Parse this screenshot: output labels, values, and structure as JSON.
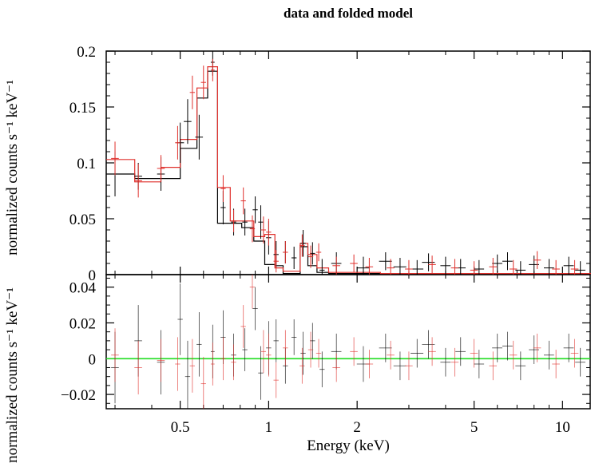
{
  "chart_data": [
    {
      "panel": "top",
      "type": "scatter",
      "title": "data and folded model",
      "ylabel": "normalized counts s⁻¹ keV⁻¹",
      "xscale": "log",
      "xlim": [
        0.28,
        12.5
      ],
      "ylim": [
        0,
        0.2
      ],
      "yticks": [
        0,
        0.05,
        0.1,
        0.15,
        0.2
      ],
      "ytick_labels": [
        "0",
        "0.05",
        "0.1",
        "0.15",
        "0.2"
      ],
      "series": [
        {
          "color": "#000000",
          "data": [
            [
              0.3,
              0.09,
              0.03,
              0.02
            ],
            [
              0.36,
              0.088,
              0.03,
              0.012
            ],
            [
              0.43,
              0.09,
              0.03,
              0.015
            ],
            [
              0.5,
              0.118,
              0.03,
              0.018
            ],
            [
              0.53,
              0.137,
              0.03,
              0.02
            ],
            [
              0.58,
              0.123,
              0.03,
              0.02
            ],
            [
              0.645,
              0.19,
              0.015,
              0.012
            ],
            [
              0.7,
              0.06,
              0.02,
              0.015
            ],
            [
              0.76,
              0.047,
              0.02,
              0.012
            ],
            [
              0.83,
              0.047,
              0.02,
              0.012
            ],
            [
              0.9,
              0.058,
              0.02,
              0.012
            ],
            [
              0.94,
              0.047,
              0.02,
              0.015
            ],
            [
              1.0,
              0.033,
              0.02,
              0.015
            ],
            [
              1.06,
              0.018,
              0.02,
              0.012
            ],
            [
              1.14,
              0.02,
              0.02,
              0.01
            ],
            [
              1.22,
              0.015,
              0.02,
              0.01
            ],
            [
              1.31,
              0.028,
              0.02,
              0.012
            ],
            [
              1.41,
              0.019,
              0.02,
              0.01
            ],
            [
              1.52,
              0.004,
              0.02,
              0.01
            ],
            [
              1.7,
              0.01,
              0.04,
              0.01
            ],
            [
              2.1,
              0.006,
              0.05,
              0.01
            ],
            [
              2.5,
              0.012,
              0.05,
              0.008
            ],
            [
              2.8,
              0.007,
              0.05,
              0.008
            ],
            [
              3.2,
              0.005,
              0.05,
              0.008
            ],
            [
              3.5,
              0.011,
              0.05,
              0.008
            ],
            [
              4.0,
              0.008,
              0.04,
              0.008
            ],
            [
              4.5,
              0.006,
              0.04,
              0.008
            ],
            [
              5.2,
              0.005,
              0.04,
              0.008
            ],
            [
              6.0,
              0.01,
              0.04,
              0.008
            ],
            [
              6.5,
              0.012,
              0.04,
              0.008
            ],
            [
              7.2,
              0.004,
              0.04,
              0.008
            ],
            [
              8.0,
              0.009,
              0.04,
              0.008
            ],
            [
              9.0,
              0.006,
              0.04,
              0.008
            ],
            [
              10.5,
              0.008,
              0.04,
              0.008
            ],
            [
              11.5,
              0.004,
              0.04,
              0.008
            ]
          ]
        },
        {
          "color": "#e0302c",
          "data": [
            [
              0.3,
              0.104,
              0.03,
              0.015
            ],
            [
              0.36,
              0.084,
              0.03,
              0.015
            ],
            [
              0.43,
              0.095,
              0.03,
              0.012
            ],
            [
              0.49,
              0.118,
              0.02,
              0.015
            ],
            [
              0.55,
              0.163,
              0.02,
              0.015
            ],
            [
              0.6,
              0.172,
              0.02,
              0.015
            ],
            [
              0.645,
              0.183,
              0.015,
              0.01
            ],
            [
              0.7,
              0.077,
              0.02,
              0.012
            ],
            [
              0.76,
              0.048,
              0.02,
              0.01
            ],
            [
              0.82,
              0.066,
              0.02,
              0.012
            ],
            [
              0.88,
              0.041,
              0.02,
              0.012
            ],
            [
              0.96,
              0.04,
              0.02,
              0.012
            ],
            [
              1.0,
              0.038,
              0.02,
              0.012
            ],
            [
              1.06,
              0.012,
              0.02,
              0.01
            ],
            [
              1.14,
              0.02,
              0.02,
              0.01
            ],
            [
              1.3,
              0.026,
              0.02,
              0.01
            ],
            [
              1.39,
              0.016,
              0.02,
              0.01
            ],
            [
              1.48,
              0.02,
              0.02,
              0.008
            ],
            [
              1.7,
              0.008,
              0.03,
              0.008
            ],
            [
              1.95,
              0.01,
              0.03,
              0.008
            ],
            [
              2.2,
              0.007,
              0.03,
              0.008
            ],
            [
              2.6,
              0.006,
              0.03,
              0.008
            ],
            [
              3.0,
              0.005,
              0.03,
              0.008
            ],
            [
              3.6,
              0.009,
              0.03,
              0.008
            ],
            [
              4.3,
              0.006,
              0.03,
              0.008
            ],
            [
              5.0,
              0.004,
              0.03,
              0.008
            ],
            [
              5.8,
              0.007,
              0.03,
              0.008
            ],
            [
              6.8,
              0.005,
              0.03,
              0.008
            ],
            [
              8.2,
              0.013,
              0.03,
              0.008
            ],
            [
              9.5,
              0.005,
              0.03,
              0.008
            ],
            [
              11.0,
              0.005,
              0.03,
              0.008
            ]
          ]
        }
      ],
      "models": [
        {
          "color": "#000000",
          "edges": [
            0.28,
            0.35,
            0.43,
            0.5,
            0.57,
            0.62,
            0.67,
            0.74,
            0.81,
            0.89,
            0.97,
            1.05,
            1.12,
            1.2,
            1.28,
            1.36,
            1.46,
            1.6,
            2.0,
            2.4,
            3.0,
            3.6,
            4.5,
            5.6,
            7.0,
            8.8,
            11.0,
            12.5
          ],
          "values": [
            0.09,
            0.086,
            0.086,
            0.113,
            0.158,
            0.182,
            0.046,
            0.046,
            0.042,
            0.03,
            0.009,
            0.008,
            0.001,
            0.001,
            0.025,
            0.008,
            0.002,
            0.001,
            0.001,
            0.001,
            0.001,
            0.001,
            0.001,
            0.001,
            0.001,
            0.001,
            0.001
          ]
        },
        {
          "color": "#e0302c",
          "edges": [
            0.28,
            0.35,
            0.43,
            0.5,
            0.57,
            0.62,
            0.67,
            0.74,
            0.81,
            0.89,
            0.97,
            1.05,
            1.12,
            1.2,
            1.28,
            1.36,
            1.46,
            1.6,
            2.0,
            2.4,
            3.0,
            3.6,
            4.5,
            5.6,
            7.0,
            8.8,
            11.0,
            12.5
          ],
          "values": [
            0.103,
            0.083,
            0.096,
            0.121,
            0.167,
            0.186,
            0.078,
            0.048,
            0.048,
            0.034,
            0.036,
            0.006,
            0.003,
            0.003,
            0.028,
            0.018,
            0.006,
            0.002,
            0.002,
            0.001,
            0.001,
            0.001,
            0.001,
            0.001,
            0.001,
            0.001,
            0.001
          ]
        }
      ]
    },
    {
      "panel": "bottom",
      "type": "scatter",
      "ylabel": "normalized counts s⁻¹ keV⁻¹",
      "xlabel": "Energy (keV)",
      "xscale": "log",
      "xlim": [
        0.28,
        12.5
      ],
      "ylim": [
        -0.028,
        0.047
      ],
      "yticks": [
        -0.02,
        0,
        0.02,
        0.04
      ],
      "ytick_labels": [
        "−0.02",
        "0",
        "0.02",
        "0.04"
      ],
      "xticks": [
        0.5,
        1,
        2,
        5,
        10
      ],
      "xtick_labels": [
        "0.5",
        "1",
        "2",
        "5",
        "10"
      ],
      "zero_line_color": "#22dd22",
      "series": [
        {
          "color": "#000000",
          "data": [
            [
              0.3,
              -0.005,
              0.03,
              0.02
            ],
            [
              0.36,
              0.01,
              0.03,
              0.02
            ],
            [
              0.43,
              -0.002,
              0.03,
              0.018
            ],
            [
              0.5,
              0.022,
              0.02,
              0.02
            ],
            [
              0.53,
              -0.01,
              0.02,
              0.02
            ],
            [
              0.58,
              0.008,
              0.02,
              0.018
            ],
            [
              0.645,
              0.004,
              0.015,
              0.015
            ],
            [
              0.7,
              0.012,
              0.02,
              0.015
            ],
            [
              0.76,
              0.002,
              0.02,
              0.012
            ],
            [
              0.83,
              0.005,
              0.02,
              0.012
            ],
            [
              0.9,
              0.028,
              0.02,
              0.012
            ],
            [
              0.94,
              -0.008,
              0.02,
              0.015
            ],
            [
              1.0,
              0.006,
              0.02,
              0.015
            ],
            [
              1.06,
              0.01,
              0.02,
              0.012
            ],
            [
              1.14,
              -0.004,
              0.02,
              0.01
            ],
            [
              1.22,
              0.012,
              0.02,
              0.01
            ],
            [
              1.31,
              0.003,
              0.02,
              0.012
            ],
            [
              1.41,
              0.01,
              0.02,
              0.01
            ],
            [
              1.52,
              -0.006,
              0.02,
              0.01
            ],
            [
              1.7,
              0.004,
              0.04,
              0.01
            ],
            [
              2.1,
              -0.003,
              0.05,
              0.01
            ],
            [
              2.5,
              0.006,
              0.05,
              0.008
            ],
            [
              2.8,
              -0.004,
              0.05,
              0.008
            ],
            [
              3.2,
              0.003,
              0.05,
              0.008
            ],
            [
              3.5,
              0.008,
              0.05,
              0.008
            ],
            [
              4.0,
              -0.002,
              0.04,
              0.008
            ],
            [
              4.5,
              0.004,
              0.04,
              0.008
            ],
            [
              5.2,
              -0.003,
              0.04,
              0.008
            ],
            [
              6.0,
              0.006,
              0.04,
              0.008
            ],
            [
              6.5,
              0.007,
              0.04,
              0.008
            ],
            [
              7.2,
              -0.004,
              0.04,
              0.008
            ],
            [
              8.0,
              0.005,
              0.04,
              0.008
            ],
            [
              9.0,
              0.002,
              0.04,
              0.008
            ],
            [
              10.5,
              0.006,
              0.04,
              0.008
            ],
            [
              11.5,
              -0.002,
              0.04,
              0.008
            ]
          ]
        },
        {
          "color": "#e0302c",
          "data": [
            [
              0.3,
              0.002,
              0.03,
              0.015
            ],
            [
              0.36,
              -0.005,
              0.03,
              0.015
            ],
            [
              0.43,
              -0.001,
              0.03,
              0.012
            ],
            [
              0.49,
              -0.003,
              0.02,
              0.015
            ],
            [
              0.55,
              -0.004,
              0.02,
              0.015
            ],
            [
              0.6,
              -0.014,
              0.02,
              0.015
            ],
            [
              0.645,
              -0.003,
              0.015,
              0.012
            ],
            [
              0.7,
              0.0,
              0.02,
              0.012
            ],
            [
              0.76,
              -0.002,
              0.02,
              0.01
            ],
            [
              0.82,
              0.018,
              0.02,
              0.012
            ],
            [
              0.88,
              0.04,
              0.02,
              0.012
            ],
            [
              0.96,
              0.004,
              0.02,
              0.012
            ],
            [
              1.0,
              0.002,
              0.02,
              0.012
            ],
            [
              1.06,
              -0.012,
              0.02,
              0.01
            ],
            [
              1.14,
              0.006,
              0.02,
              0.01
            ],
            [
              1.3,
              -0.004,
              0.02,
              0.01
            ],
            [
              1.39,
              0.005,
              0.02,
              0.01
            ],
            [
              1.48,
              0.003,
              0.02,
              0.008
            ],
            [
              1.7,
              -0.005,
              0.03,
              0.008
            ],
            [
              1.95,
              0.004,
              0.03,
              0.008
            ],
            [
              2.2,
              -0.003,
              0.03,
              0.008
            ],
            [
              2.6,
              0.002,
              0.03,
              0.008
            ],
            [
              3.0,
              -0.004,
              0.03,
              0.008
            ],
            [
              3.6,
              0.004,
              0.03,
              0.008
            ],
            [
              4.3,
              -0.002,
              0.03,
              0.008
            ],
            [
              5.0,
              0.003,
              0.03,
              0.008
            ],
            [
              5.8,
              -0.004,
              0.03,
              0.008
            ],
            [
              6.8,
              0.002,
              0.03,
              0.008
            ],
            [
              8.2,
              0.006,
              0.03,
              0.008
            ],
            [
              9.5,
              -0.003,
              0.03,
              0.008
            ],
            [
              11.0,
              0.003,
              0.03,
              0.008
            ]
          ]
        }
      ]
    }
  ]
}
